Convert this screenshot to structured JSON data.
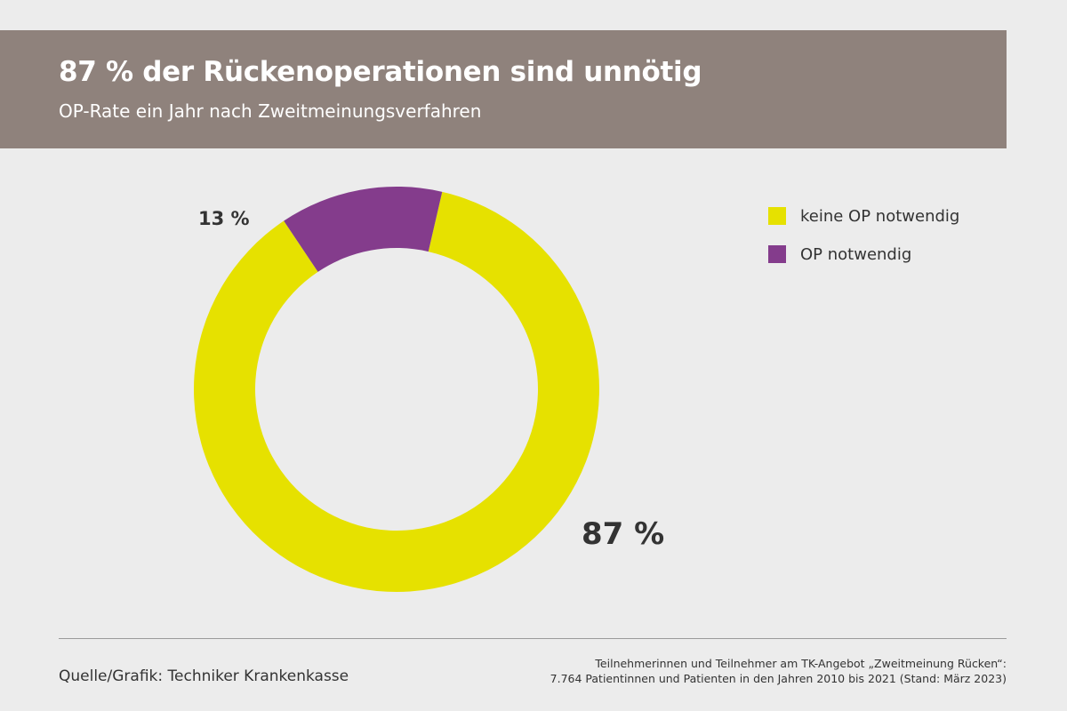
{
  "header": {
    "title": "87 % der Rückenoperationen sind unnötig",
    "subtitle": "OP-Rate ein Jahr nach Zweitmeinungsverfahren"
  },
  "chart_data": {
    "type": "pie",
    "variant": "donut",
    "categories": [
      "keine OP notwendig",
      "OP notwendig"
    ],
    "values": [
      87,
      13
    ],
    "data_labels": [
      "87 %",
      "13 %"
    ],
    "colors": [
      "#e6e100",
      "#843c8c"
    ],
    "legend": "right"
  },
  "legend": {
    "items": [
      {
        "label": "keine OP notwendig",
        "color": "#e6e100"
      },
      {
        "label": "OP notwendig",
        "color": "#843c8c"
      }
    ]
  },
  "footer": {
    "source": "Quelle/Grafik: Techniker Krankenkasse",
    "note_line1": "Teilnehmerinnen und Teilnehmer am TK-Angebot „Zweitmeinung Rücken“:",
    "note_line2": "7.764 Patientinnen und Patienten in den Jahren 2010 bis 2021 (Stand: März 2023)"
  }
}
